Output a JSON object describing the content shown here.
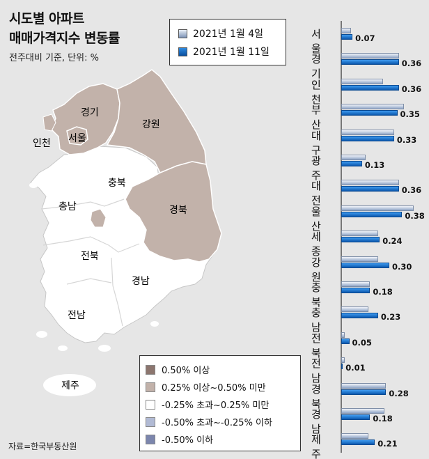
{
  "title_line1": "시도별 아파트",
  "title_line2": "매매가격지수 변동률",
  "subtitle": "전주대비 기준, 단위: %",
  "legend_top": [
    {
      "label": "2021년 1월  4일",
      "color": "#9fb0cc"
    },
    {
      "label": "2021년 1월 11일",
      "color": "#1565c0"
    }
  ],
  "legend_bottom": [
    {
      "label": "0.50% 이상",
      "color": "#8c766f"
    },
    {
      "label": "0.25% 이상~0.50% 미만",
      "color": "#c2b2aa"
    },
    {
      "label": "-0.25% 초과~0.25% 미만",
      "color": "#ffffff"
    },
    {
      "label": "-0.50% 초과~-0.25% 이하",
      "color": "#b1bad4"
    },
    {
      "label": "-0.50% 이하",
      "color": "#7c86ad"
    }
  ],
  "map_labels": {
    "gyeonggi": "경기",
    "seoul": "서울",
    "incheon": "인천",
    "gangwon": "강원",
    "chungbuk": "충북",
    "chungnam": "충남",
    "gyeongbuk": "경북",
    "jeonbuk": "전북",
    "gyeongnam": "경남",
    "jeonnam": "전남",
    "jeju": "제주"
  },
  "source": "자료=한국부동산원",
  "chart_data": {
    "type": "bar",
    "orientation": "horizontal",
    "categories": [
      "서울",
      "경기",
      "인천",
      "부산",
      "대구",
      "광주",
      "대전",
      "울산",
      "세종",
      "강원",
      "충북",
      "충남",
      "전북",
      "전남",
      "경북",
      "경남",
      "제주"
    ],
    "series": [
      {
        "name": "2021년 1월  4일",
        "values": [
          0.06,
          0.36,
          0.26,
          0.39,
          0.33,
          0.15,
          0.36,
          0.45,
          0.23,
          0.23,
          0.18,
          0.17,
          0.02,
          0.02,
          0.28,
          0.27,
          0.17
        ]
      },
      {
        "name": "2021년 1월 11일",
        "values": [
          0.07,
          0.36,
          0.36,
          0.35,
          0.33,
          0.13,
          0.36,
          0.38,
          0.24,
          0.3,
          0.18,
          0.23,
          0.05,
          0.01,
          0.28,
          0.18,
          0.21
        ]
      }
    ],
    "value_labels": [
      "0.07",
      "0.36",
      "0.36",
      "0.35",
      "0.33",
      "0.13",
      "0.36",
      "0.38",
      "0.24",
      "0.30",
      "0.18",
      "0.23",
      "0.05",
      "0.01",
      "0.28",
      "0.18",
      "0.21"
    ]
  }
}
